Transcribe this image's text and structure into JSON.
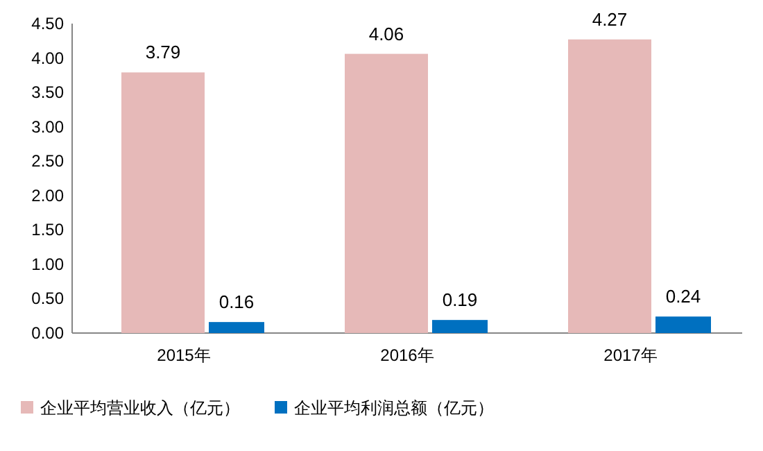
{
  "chart_data": {
    "type": "bar",
    "categories": [
      "2015年",
      "2016年",
      "2017年"
    ],
    "series": [
      {
        "name": "企业平均营业收入（亿元）",
        "color": "#e6b9b8",
        "values": [
          3.79,
          4.06,
          4.27
        ]
      },
      {
        "name": "企业平均利润总额（亿元）",
        "color": "#0070c0",
        "values": [
          0.16,
          0.19,
          0.24
        ]
      }
    ],
    "ylim": [
      0,
      4.5
    ],
    "yticks": [
      {
        "value": 0,
        "label": "0.00"
      },
      {
        "value": 0.5,
        "label": "0.50"
      },
      {
        "value": 1,
        "label": "1.00"
      },
      {
        "value": 1.5,
        "label": "1.50"
      },
      {
        "value": 2,
        "label": "2.00"
      },
      {
        "value": 2.5,
        "label": "2.50"
      },
      {
        "value": 3,
        "label": "3.00"
      },
      {
        "value": 3.5,
        "label": "3.50"
      },
      {
        "value": 4,
        "label": "4.00"
      },
      {
        "value": 4.5,
        "label": "4.50"
      }
    ],
    "data_labels": true,
    "legend": "bottom"
  }
}
